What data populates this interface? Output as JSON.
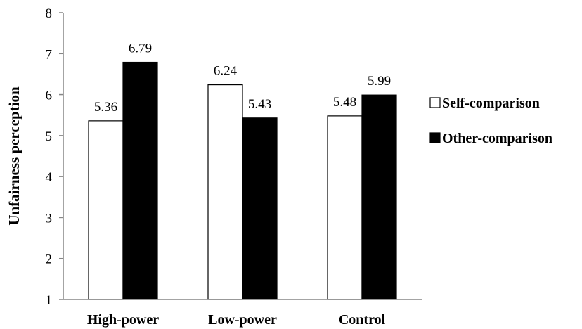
{
  "chart_data": {
    "type": "bar",
    "categories": [
      "High-power",
      "Low-power",
      "Control"
    ],
    "series": [
      {
        "name": "Self-comparison",
        "values": [
          5.36,
          6.24,
          5.48
        ],
        "color": "#ffffff"
      },
      {
        "name": "Other-comparison",
        "values": [
          6.79,
          5.43,
          5.99
        ],
        "color": "#000000"
      }
    ],
    "data_labels": [
      [
        "5.36",
        "6.24",
        "5.48"
      ],
      [
        "6.79",
        "5.43",
        "5.99"
      ]
    ],
    "ylabel": "Unfairness perception",
    "xlabel": "",
    "ylim": [
      1,
      8
    ],
    "yticks": [
      1,
      2,
      3,
      4,
      5,
      6,
      7,
      8
    ],
    "grid": false,
    "legend_position": "right"
  }
}
